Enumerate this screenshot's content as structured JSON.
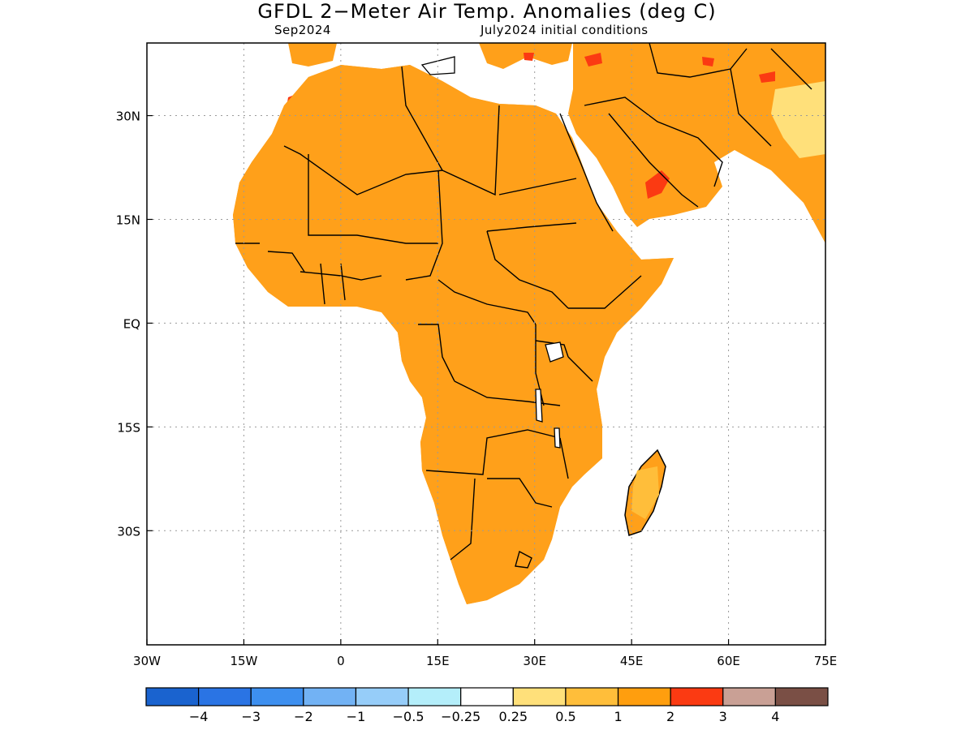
{
  "title": "GFDL 2−Meter Air Temp. Anomalies (deg C)",
  "subtitle_left": "Sep2024",
  "subtitle_right": "July2024 initial conditions",
  "map": {
    "lon_range": [
      -30,
      75
    ],
    "lat_range": [
      -46.5,
      40.5
    ],
    "x_ticks": [
      {
        "value": -30,
        "label": "30W"
      },
      {
        "value": -15,
        "label": "15W"
      },
      {
        "value": 0,
        "label": "0"
      },
      {
        "value": 15,
        "label": "15E"
      },
      {
        "value": 30,
        "label": "30E"
      },
      {
        "value": 45,
        "label": "45E"
      },
      {
        "value": 60,
        "label": "60E"
      },
      {
        "value": 75,
        "label": "75E"
      }
    ],
    "y_ticks": [
      {
        "value": 30,
        "label": "30N"
      },
      {
        "value": 15,
        "label": "15N"
      },
      {
        "value": 0,
        "label": "EQ"
      },
      {
        "value": -15,
        "label": "15S"
      },
      {
        "value": -30,
        "label": "30S"
      }
    ],
    "grid": "dotted"
  },
  "colorbar": {
    "colors": [
      "#1a63cf",
      "#2a74e4",
      "#3d8fef",
      "#72b2f4",
      "#96cdf9",
      "#b4eefa",
      "#ffffff",
      "#ffe07a",
      "#ffbe3a",
      "#ff9e0e",
      "#fb3a12",
      "#c9a095",
      "#7a4f45"
    ],
    "labels": [
      "−4",
      "−3",
      "−2",
      "−1",
      "−0.5",
      "−0.25",
      "0.25",
      "0.5",
      "1",
      "2",
      "3",
      "4"
    ]
  },
  "colors": {
    "land_main": "#ffa01a",
    "land_light": "#ffbe3a",
    "weak_warm": "#ffe07a",
    "cool_light": "#b4eefa",
    "cool_mid": "#96cdf9",
    "cool_strong": "#72b2f4",
    "hot": "#fb3a12"
  }
}
